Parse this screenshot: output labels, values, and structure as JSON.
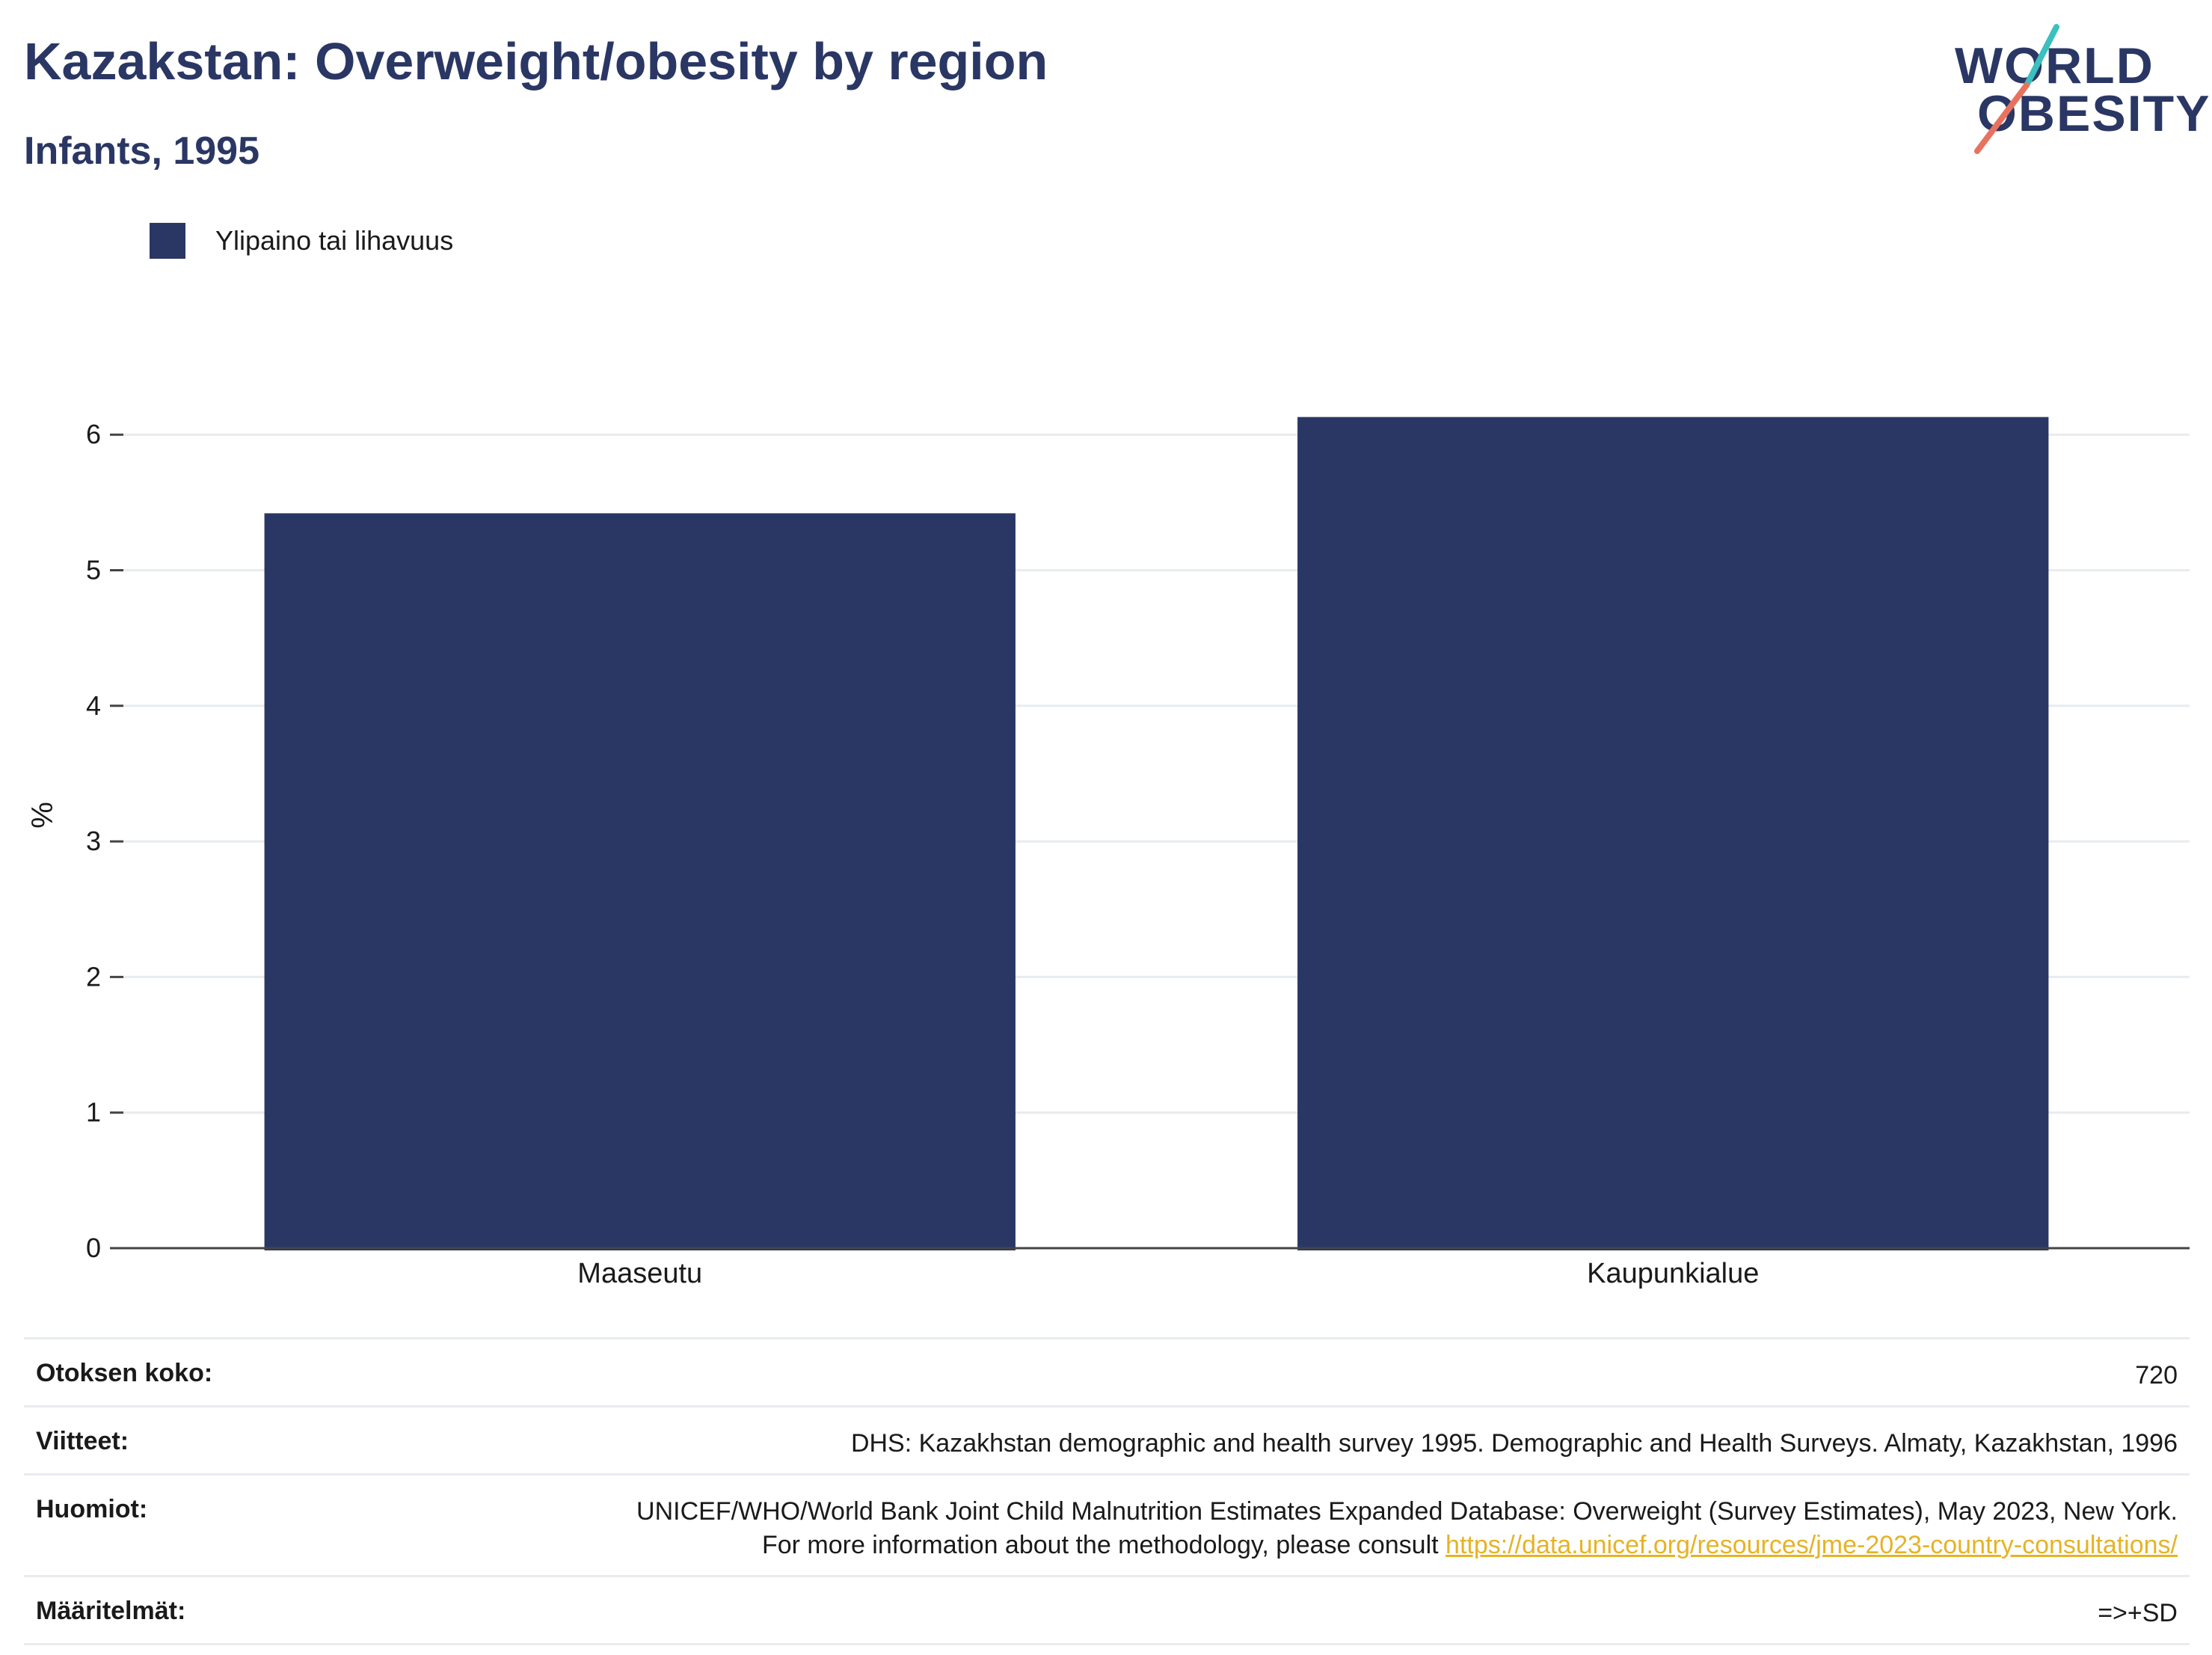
{
  "header": {
    "title": "Kazakstan: Overweight/obesity by region",
    "subtitle": "Infants, 1995"
  },
  "logo": {
    "line1": "WORLD",
    "line2": "OBESITY"
  },
  "colors": {
    "bar": "#2a3764",
    "grid": "#e8ecef",
    "axis": "#444444",
    "link": "#e6b325"
  },
  "chart_data": {
    "type": "bar",
    "categories": [
      "Maaseutu",
      "Kaupunkialue"
    ],
    "series": [
      {
        "name": "Ylipaino tai lihavuus",
        "values": [
          5.42,
          6.13
        ]
      }
    ],
    "ylabel": "%",
    "xlabel": "",
    "ylim": [
      0,
      6.4
    ],
    "yticks": [
      0,
      1,
      2,
      3,
      4,
      5,
      6
    ],
    "legend": "top-left",
    "grid": true
  },
  "meta": {
    "sample_label": "Otoksen koko:",
    "sample_value": "720",
    "refs_label": "Viitteet:",
    "refs_value": "DHS: Kazakhstan demographic and health survey 1995. Demographic and Health Surveys. Almaty, Kazakhstan, 1996",
    "notes_label": "Huomiot:",
    "notes_value": "UNICEF/WHO/World Bank Joint Child Malnutrition Estimates Expanded Database: Overweight (Survey Estimates), May 2023, New York. For more information about the methodology, please consult ",
    "notes_link": "https://data.unicef.org/resources/jme-2023-country-consultations/",
    "defs_label": "Määritelmät:",
    "defs_value": "=>+SD"
  }
}
